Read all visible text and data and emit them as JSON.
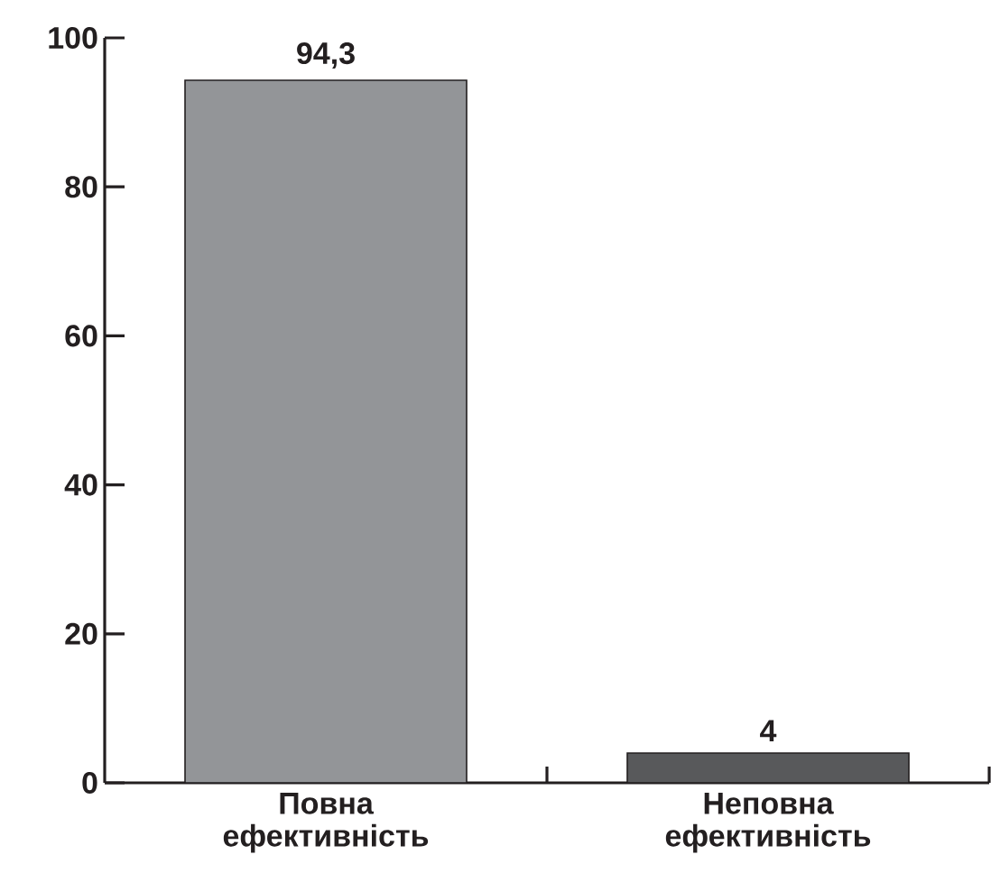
{
  "chart_data": {
    "type": "bar",
    "categories": [
      "Повна ефективність",
      "Неповна ефективність"
    ],
    "values": [
      94.3,
      4
    ],
    "colors": [
      "#939598",
      "#58595b"
    ],
    "value_labels": [
      "94,3",
      "4"
    ],
    "ylim": [
      0,
      100
    ],
    "yticks": [
      0,
      20,
      40,
      60,
      80,
      100
    ]
  }
}
